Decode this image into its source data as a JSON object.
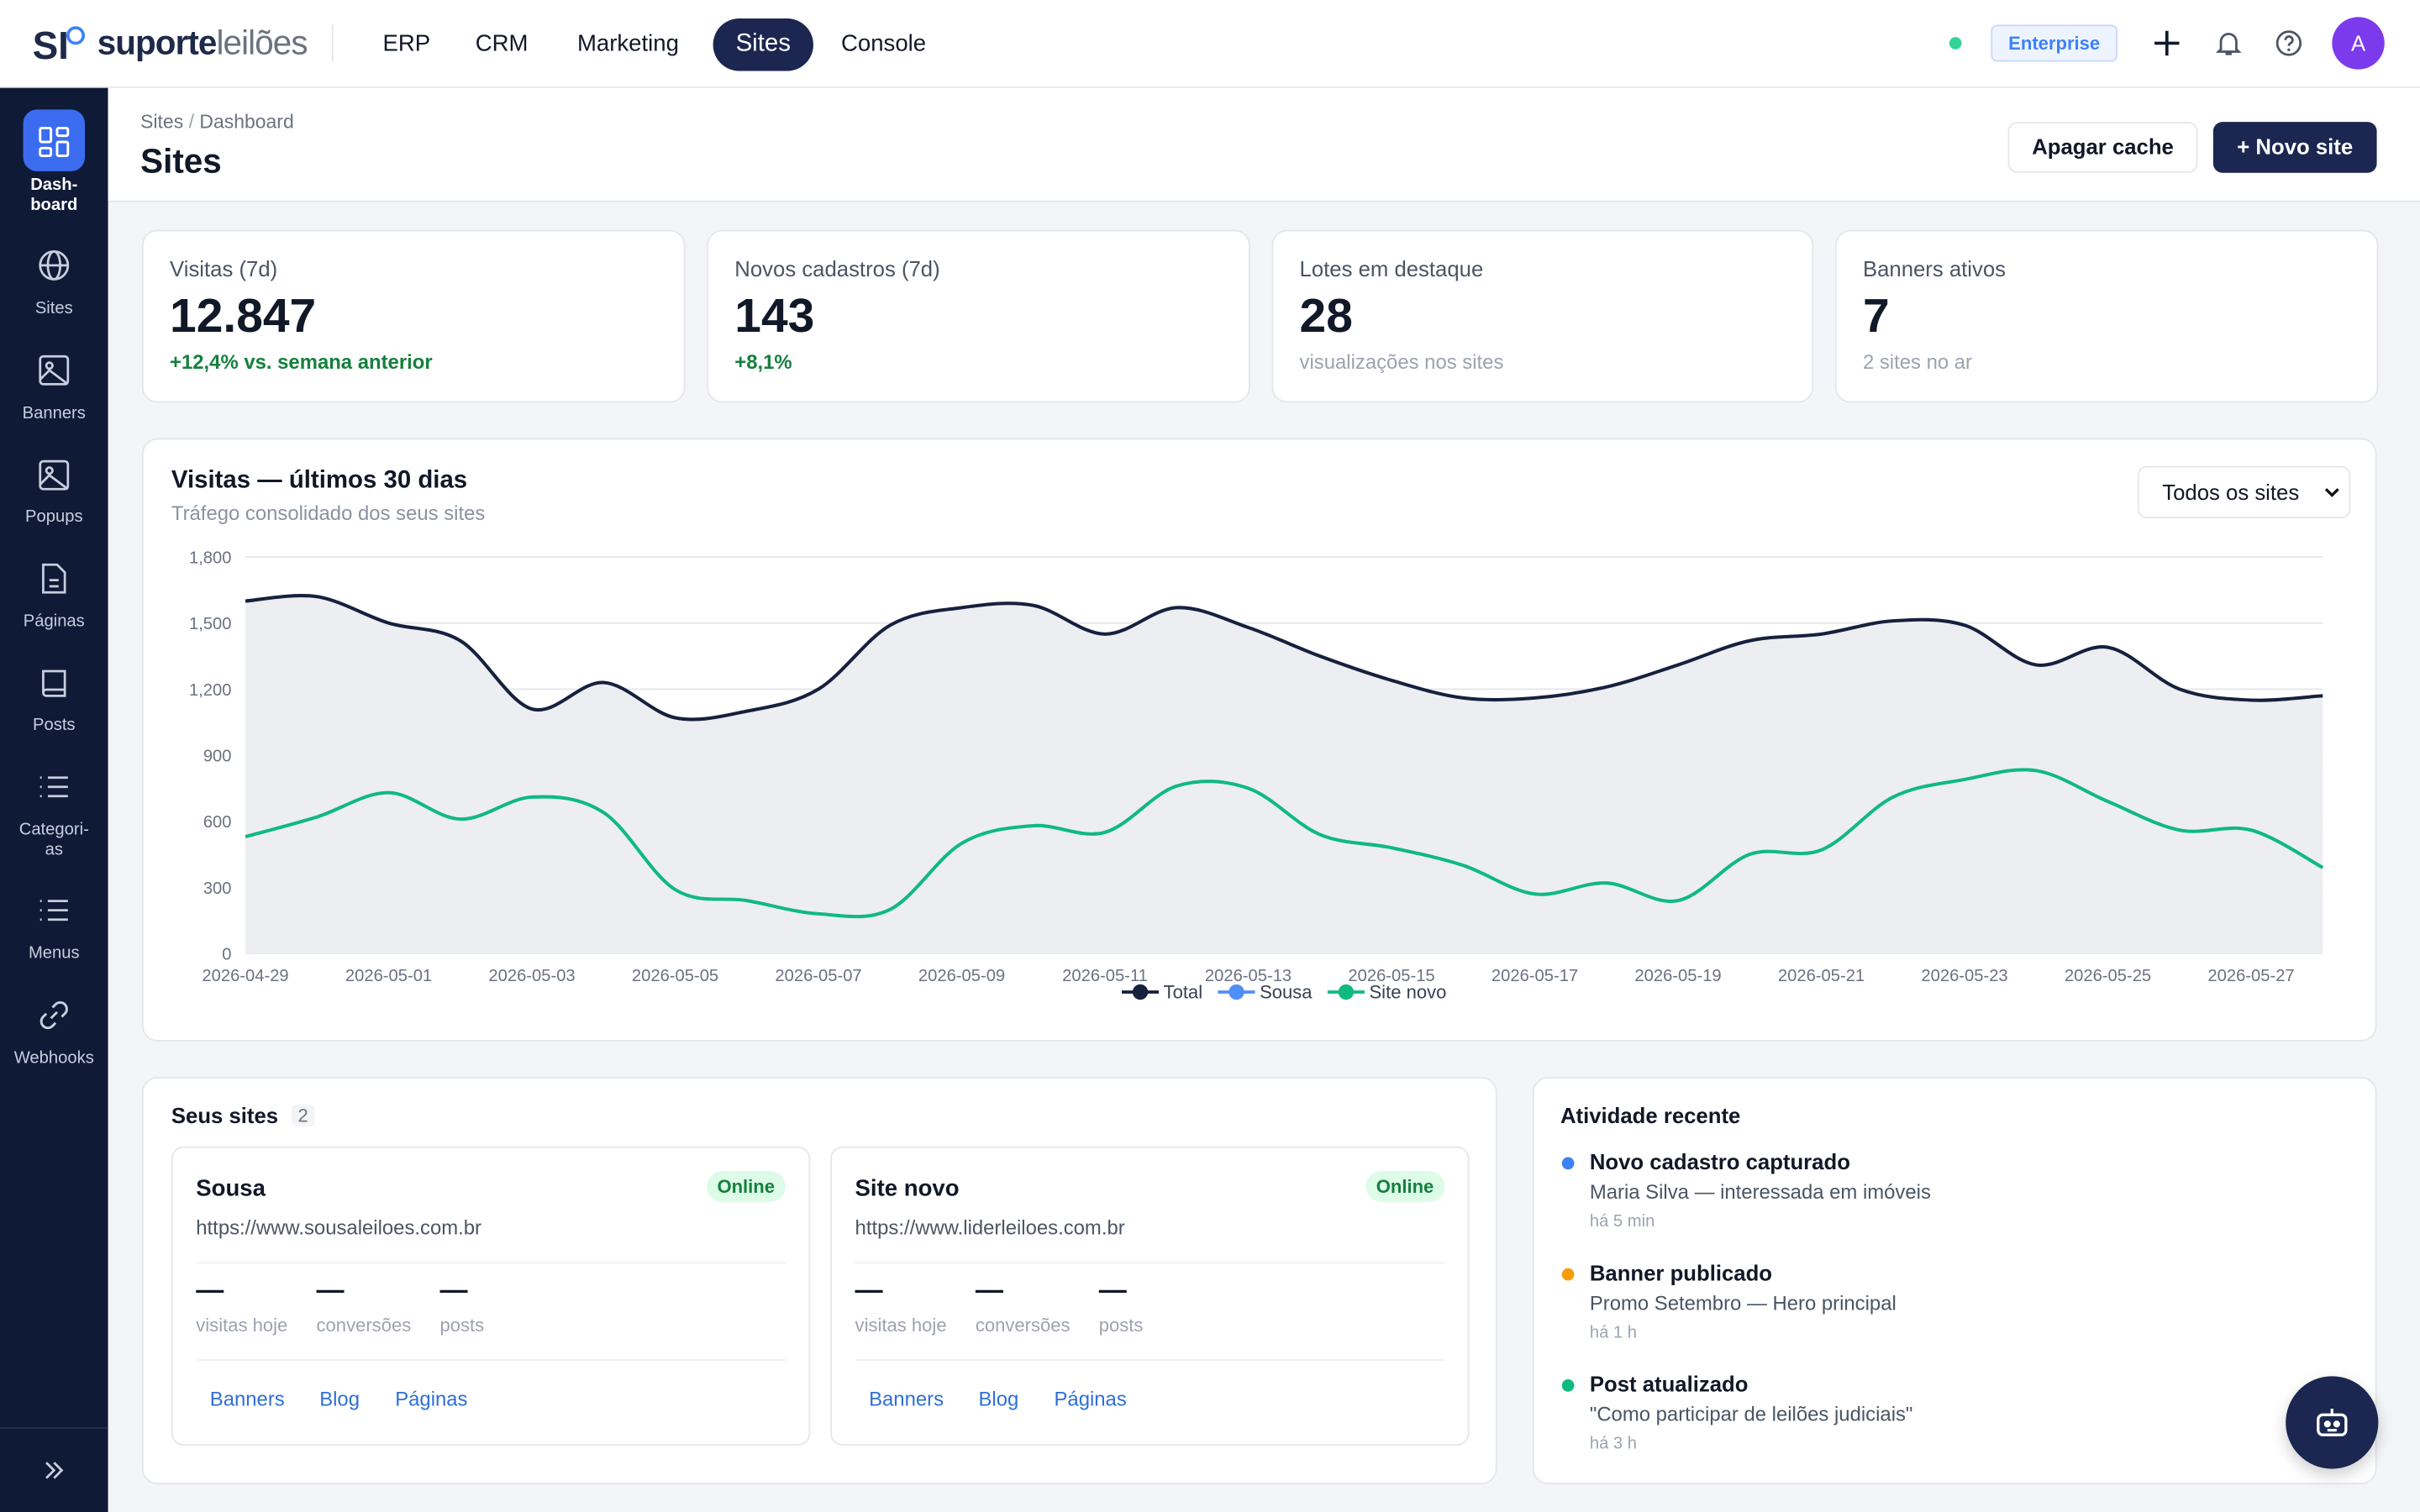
{
  "topbar": {
    "brand_a": "suporte",
    "brand_b": "leilões",
    "nav": [
      "ERP",
      "CRM",
      "Marketing",
      "Sites",
      "Console"
    ],
    "plan": "Enterprise",
    "avatar": "A"
  },
  "sidebar": {
    "items": [
      "Dash-\nboard",
      "Sites",
      "Banners",
      "Popups",
      "Páginas",
      "Posts",
      "Categori-\nas",
      "Menus",
      "Webhooks"
    ]
  },
  "header": {
    "breadcrumb": [
      "Sites",
      "Dashboard"
    ],
    "title": "Sites",
    "buttons": [
      "Apagar cache",
      "+ Novo site"
    ]
  },
  "stats": [
    {
      "label": "Visitas (7d)",
      "value": "12.847",
      "note": "+12,4% vs. semana anterior"
    },
    {
      "label": "Novos cadastros (7d)",
      "value": "143",
      "note": "+8,1%"
    },
    {
      "label": "Lotes em destaque",
      "value": "28",
      "note": "visualizações nos sites"
    },
    {
      "label": "Banners ativos",
      "value": "7",
      "note": "2 sites no ar"
    }
  ],
  "chart_panel": {
    "title": "Visitas — últimos 30 dias",
    "subtitle": "Tráfego consolidado dos seus sites",
    "select": "Todos os sites"
  },
  "chart_data": {
    "type": "line",
    "categories": [
      "2026-04-29",
      null,
      "2026-05-01",
      null,
      "2026-05-03",
      null,
      "2026-05-05",
      null,
      "2026-05-07",
      null,
      "2026-05-09",
      null,
      "2026-05-11",
      null,
      "2026-05-13",
      null,
      "2026-05-15",
      null,
      "2026-05-17",
      null,
      "2026-05-19",
      null,
      "2026-05-21",
      null,
      "2026-05-23",
      null,
      "2026-05-25",
      null,
      "2026-05-27",
      null
    ],
    "series": [
      {
        "name": "Total",
        "color": "#16213e",
        "values": [
          1600,
          1620,
          1500,
          1420,
          1110,
          1230,
          1070,
          1100,
          1200,
          1490,
          1570,
          1580,
          1450,
          1570,
          1480,
          1350,
          1240,
          1160,
          1160,
          1210,
          1310,
          1420,
          1450,
          1510,
          1490,
          1310,
          1390,
          1200,
          1150,
          1170
        ]
      },
      {
        "name": "Sousa",
        "color": "#4f8ef7",
        "values": [
          null,
          null,
          null,
          null,
          null,
          null,
          null,
          null,
          null,
          null,
          null,
          null,
          null,
          null,
          null,
          null,
          null,
          null,
          null,
          null,
          null,
          null,
          null,
          null,
          null,
          null,
          null,
          null,
          null,
          null
        ]
      },
      {
        "name": "Site novo",
        "color": "#10b981",
        "values": [
          530,
          620,
          730,
          610,
          710,
          640,
          290,
          240,
          180,
          200,
          500,
          580,
          550,
          760,
          750,
          540,
          480,
          400,
          270,
          320,
          240,
          450,
          470,
          710,
          790,
          830,
          690,
          560,
          560,
          390
        ]
      }
    ],
    "ylim": [
      0,
      1800
    ],
    "yticks": [
      0,
      300,
      600,
      900,
      {
        "value": 1200,
        "label": "1,200"
      },
      {
        "value": 1500,
        "label": "1,500"
      },
      {
        "value": 1800,
        "label": "1,800"
      }
    ],
    "grid": true,
    "area_under": "Total"
  },
  "sites": {
    "title": "Seus sites",
    "count": "2",
    "cards": [
      {
        "name": "Sousa",
        "status": "Online",
        "url": "https://www.sousaleiloes.com.br",
        "metrics": [
          {
            "value": "—",
            "label": "visitas hoje"
          },
          {
            "value": "—",
            "label": "conversões"
          },
          {
            "value": "—",
            "label": "posts"
          }
        ],
        "links": [
          "Banners",
          "Blog",
          "Páginas"
        ]
      },
      {
        "name": "Site novo",
        "status": "Online",
        "url": "https://www.liderleiloes.com.br",
        "metrics": [
          {
            "value": "—",
            "label": "visitas hoje"
          },
          {
            "value": "—",
            "label": "conversões"
          },
          {
            "value": "—",
            "label": "posts"
          }
        ],
        "links": [
          "Banners",
          "Blog",
          "Páginas"
        ]
      }
    ]
  },
  "activity": {
    "title": "Atividade recente",
    "items": [
      {
        "title": "Novo cadastro capturado",
        "detail": "Maria Silva — interessada em imóveis",
        "time": "há 5 min",
        "color": "#3b82f6"
      },
      {
        "title": "Banner publicado",
        "detail": "Promo Setembro — Hero principal",
        "time": "há 1 h",
        "color": "#f59e0b"
      },
      {
        "title": "Post atualizado",
        "detail": "\"Como participar de leilões judiciais\"",
        "time": "há 3 h",
        "color": "#10b981"
      }
    ]
  }
}
